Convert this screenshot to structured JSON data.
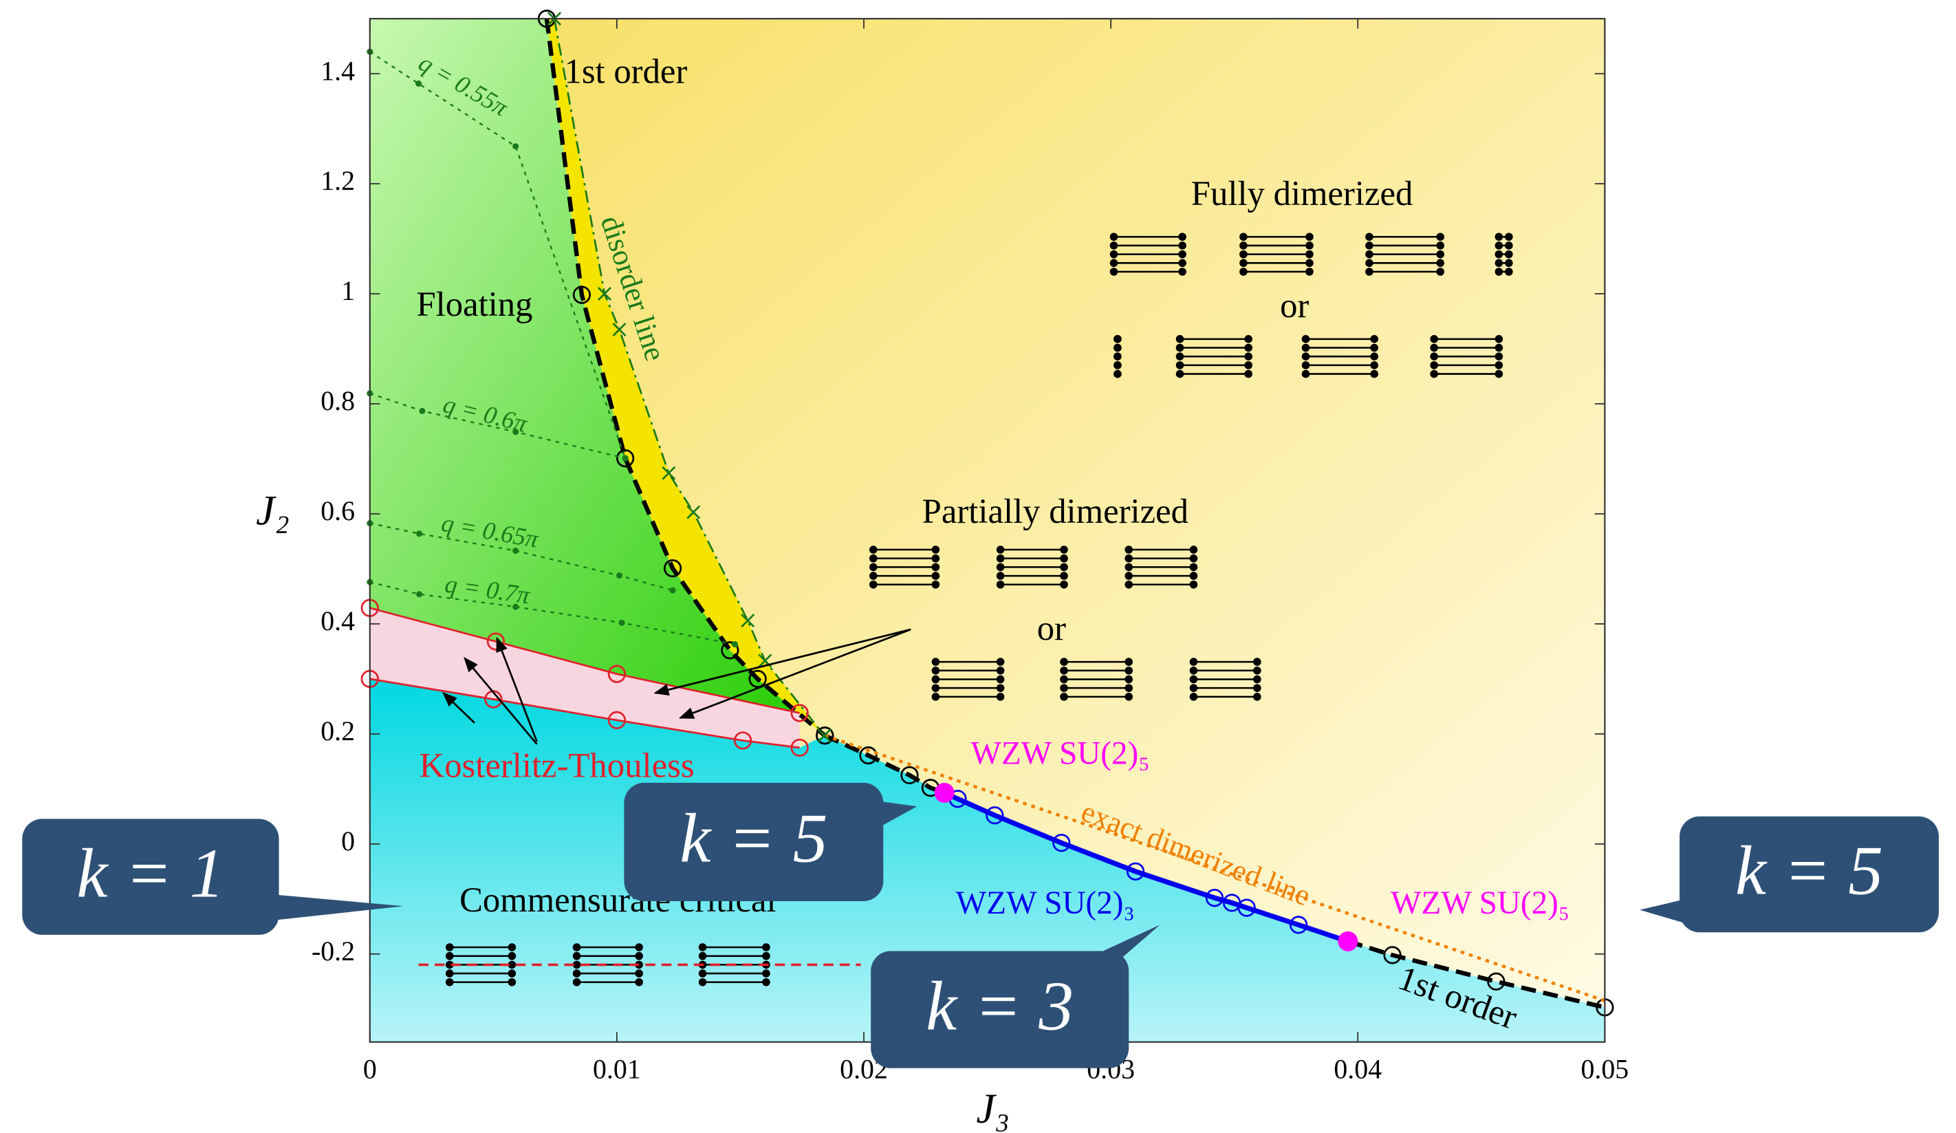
{
  "chart_data": {
    "type": "phase-diagram",
    "x_label": "J₃",
    "y_label": "J₂",
    "xlim": [
      0,
      0.05
    ],
    "ylim": [
      -0.36,
      1.5
    ],
    "xticks": [
      0,
      0.01,
      0.02,
      0.03,
      0.04,
      0.05
    ],
    "yticks": [
      -0.2,
      0,
      0.2,
      0.4,
      0.6,
      0.8,
      1,
      1.2,
      1.4
    ],
    "series": [
      {
        "color": "#000000",
        "line_style": "dashed",
        "marker": "circle",
        "x": [
          0.00716,
          0.00858,
          0.01034,
          0.01226,
          0.01458,
          0.0157,
          0.01842
        ],
        "y": [
          1.5,
          0.998,
          0.701,
          0.501,
          0.352,
          0.3,
          0.197
        ]
      },
      {
        "color": "#000000",
        "line_style": "dashed",
        "marker": "circle",
        "x": [
          0.01842,
          0.02018,
          0.02185,
          0.0227,
          0.02326
        ],
        "y": [
          0.197,
          0.161,
          0.125,
          0.102,
          0.093
        ]
      },
      {
        "color": "#0000ee",
        "line_style": "solid",
        "marker": "circle",
        "x": [
          0.02326,
          0.0238,
          0.0253,
          0.028,
          0.031,
          0.0342,
          0.0349,
          0.0355,
          0.0376,
          0.0396
        ],
        "y": [
          0.093,
          0.082,
          0.052,
          0.002,
          -0.05,
          -0.098,
          -0.107,
          -0.116,
          -0.147,
          -0.177
        ]
      },
      {
        "color": "#000000",
        "line_style": "dashed",
        "marker": "circle",
        "x": [
          0.0396,
          0.0414,
          0.0456,
          0.05
        ],
        "y": [
          -0.177,
          -0.202,
          -0.25,
          -0.297
        ]
      },
      {
        "color": "#f08000",
        "line_style": "dotted",
        "marker": "none",
        "x": [
          0.01842,
          0.05
        ],
        "y": [
          0.197,
          -0.285
        ]
      },
      {
        "color": "#1a7a1a",
        "line_style": "dashdot",
        "marker": "x",
        "x": [
          0.00747,
          0.0095,
          0.0101,
          0.0121,
          0.0131,
          0.0153,
          0.016,
          0.0184
        ],
        "y": [
          1.5,
          1.0,
          0.935,
          0.674,
          0.603,
          0.406,
          0.333,
          0.197
        ]
      },
      {
        "color": "#e0202a",
        "line_style": "solid",
        "marker": "circle",
        "x": [
          0,
          0.0051,
          0.01,
          0.0174
        ],
        "y": [
          0.429,
          0.368,
          0.309,
          0.238
        ]
      },
      {
        "color": "#e0202a",
        "line_style": "solid",
        "marker": "circle",
        "x": [
          0,
          0.005,
          0.01,
          0.0151,
          0.0174
        ],
        "y": [
          0.3,
          0.263,
          0.225,
          0.188,
          0.175
        ]
      },
      {
        "color": "#1a7a1a",
        "line_style": "dotted",
        "marker": "dot",
        "x": [
          0,
          0.00197,
          0.0059,
          0.01034
        ],
        "y": [
          1.44,
          1.382,
          1.268,
          0.701
        ]
      },
      {
        "color": "#1a7a1a",
        "line_style": "dotted",
        "marker": "dot",
        "x": [
          0,
          0.00212,
          0.0059,
          0.01034
        ],
        "y": [
          0.819,
          0.787,
          0.749,
          0.701
        ]
      },
      {
        "color": "#1a7a1a",
        "line_style": "dotted",
        "marker": "dot",
        "x": [
          0,
          0.002,
          0.0059,
          0.0101,
          0.01226
        ],
        "y": [
          0.583,
          0.564,
          0.533,
          0.488,
          0.461
        ]
      },
      {
        "color": "#1a7a1a",
        "line_style": "dotted",
        "marker": "dot",
        "x": [
          0,
          0.002,
          0.0059,
          0.0102,
          0.01478
        ],
        "y": [
          0.476,
          0.454,
          0.431,
          0.402,
          0.363
        ]
      },
      {
        "color": "#ff00ff",
        "line_style": "none",
        "marker": "filled",
        "x": [
          0.02326,
          0.0396
        ],
        "y": [
          0.093,
          -0.177
        ]
      }
    ],
    "annotations": [
      "1st order",
      "disorder line",
      "Fully dimerized",
      "or",
      "Floating",
      "Partially dimerized",
      "or",
      "Kosterlitz-Thouless",
      "WZW SU(2)₅",
      "exact dimerized line",
      "WZW SU(2)₃",
      "WZW SU(2)₅",
      "Commensurate critical",
      "1st order",
      "q = 0.55π",
      "q = 0.6π",
      "q = 0.65π",
      "q = 0.7π"
    ],
    "callouts": [
      "k = 1",
      "k = 5",
      "k = 5",
      "k = 3"
    ]
  }
}
